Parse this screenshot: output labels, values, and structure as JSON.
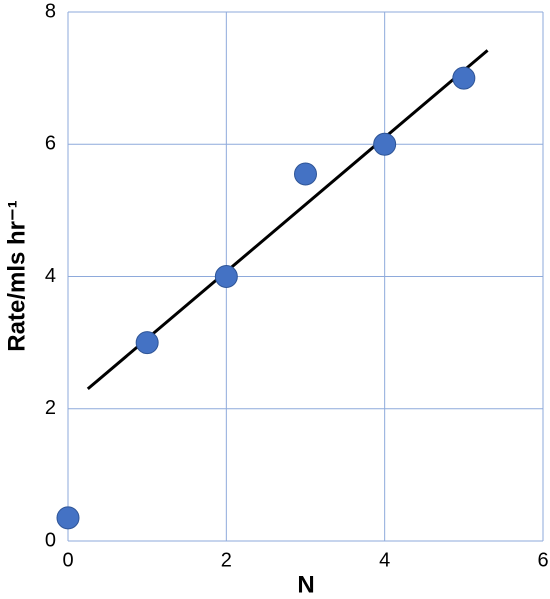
{
  "chart_data": {
    "type": "scatter",
    "x_label": "N",
    "y_label": "Rate/mls hr⁻¹",
    "series": [
      {
        "color": "#4472c4",
        "x": [
          0,
          1,
          2,
          3,
          4,
          5
        ],
        "values": [
          0.35,
          3.0,
          4.0,
          5.55,
          6.0,
          7.0
        ]
      }
    ],
    "trendline": {
      "color": "#000000",
      "x": [
        0.25,
        5.3
      ],
      "values": [
        2.3,
        7.42
      ]
    },
    "xlim": [
      0,
      6
    ],
    "xticks": [
      0,
      2,
      4,
      6
    ],
    "ylim": [
      0,
      8
    ],
    "yticks": [
      0,
      2,
      4,
      6,
      8
    ],
    "grid": true
  }
}
